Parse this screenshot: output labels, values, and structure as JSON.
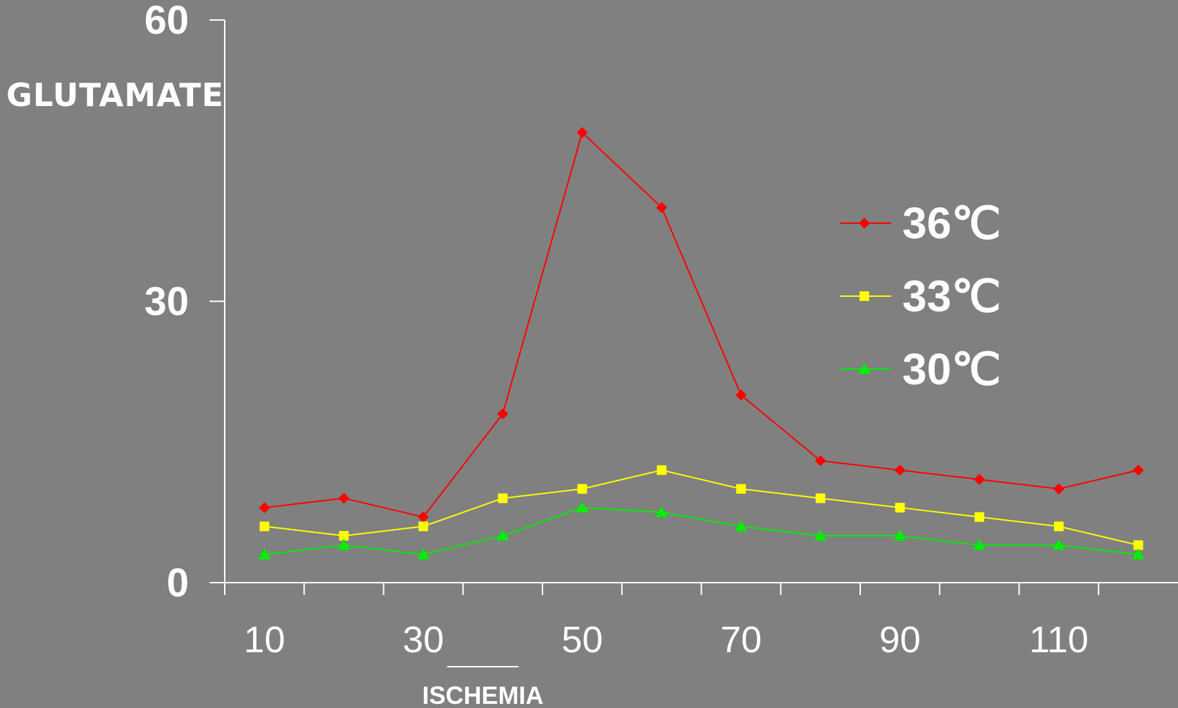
{
  "chart_data": {
    "type": "line",
    "ylabel": "GLUTAMATE",
    "xlabel": "",
    "ylim": [
      0,
      60
    ],
    "y_ticks": [
      "0",
      "30",
      "60"
    ],
    "x_tick_labels": [
      "10",
      "30",
      "50",
      "70",
      "90",
      "110"
    ],
    "x": [
      10,
      20,
      30,
      40,
      50,
      60,
      70,
      80,
      90,
      100,
      110,
      120
    ],
    "xlim": [
      5,
      125
    ],
    "series": [
      {
        "name": "36℃",
        "color": "#ff0000",
        "marker": "diamond",
        "values": [
          8,
          9,
          7,
          18,
          48,
          40,
          20,
          13,
          12,
          11,
          10,
          12
        ]
      },
      {
        "name": "33℃",
        "color": "#ffff00",
        "marker": "square",
        "values": [
          6,
          5,
          6,
          9,
          10,
          12,
          10,
          9,
          8,
          7,
          6,
          4
        ]
      },
      {
        "name": "30℃",
        "color": "#00ee00",
        "marker": "triangle",
        "values": [
          3,
          4,
          3,
          5,
          8,
          7.5,
          6,
          5,
          5,
          4,
          4,
          3
        ]
      }
    ],
    "annotation": {
      "text": "ISCHEMIA",
      "x_range": [
        33,
        42
      ]
    },
    "legend_position": "right",
    "grid": false,
    "background_color": "#808080",
    "axis_color": "#ffffff"
  }
}
